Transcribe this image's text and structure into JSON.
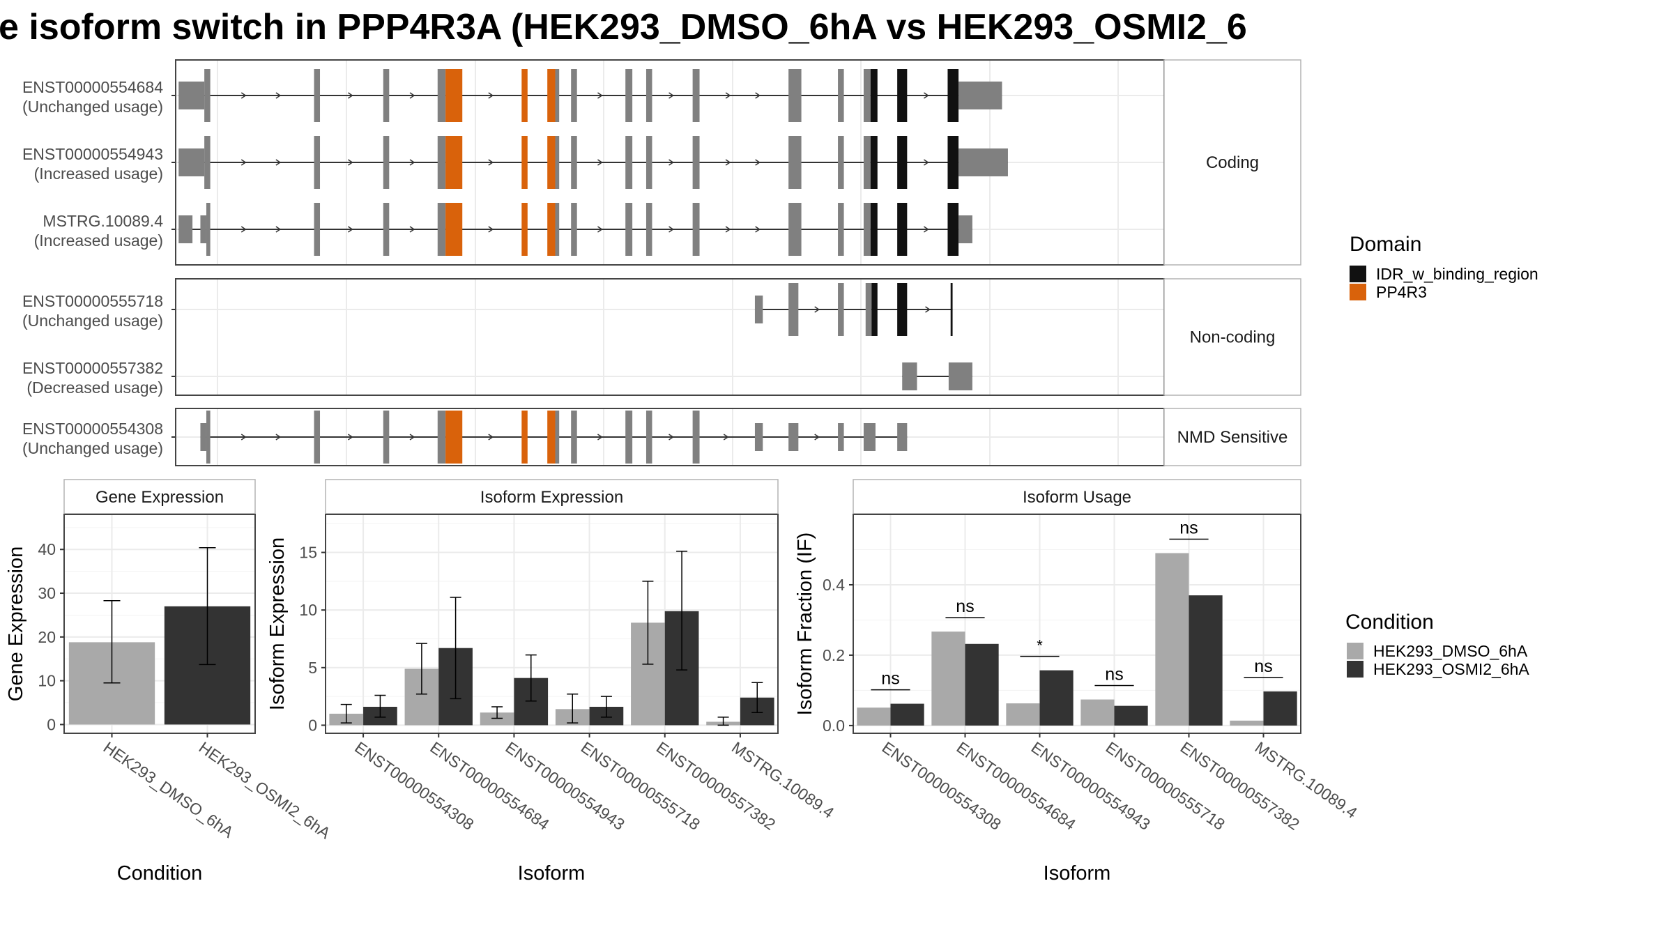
{
  "title": "e isoform switch in PPP4R3A (HEK293_DMSO_6hA vs HEK293_OSMI2_6",
  "colors": {
    "dmso": "#a9a9a9",
    "osmi2": "#333333",
    "exon": "#808080",
    "idr": "#111111",
    "pp4r3": "#d9620b",
    "intron": "#333333",
    "grid": "#ebebeb",
    "panel_border": "#444444"
  },
  "transcript_plot": {
    "groups": [
      {
        "label": "Coding",
        "transcripts": [
          {
            "id": "ENST00000554684",
            "usage": "(Unchanged usage)",
            "exons": [
              [
                0.3,
                2.9,
                "thin"
              ],
              [
                2.9,
                3.5,
                "thick"
              ],
              [
                14,
                14.6,
                "thick"
              ],
              [
                21,
                21.6,
                "thick"
              ],
              [
                26.5,
                27.3,
                "thick"
              ],
              [
                27.3,
                29,
                "pp4r3"
              ],
              [
                35,
                35.6,
                "pp4r3"
              ],
              [
                37.6,
                38.4,
                "pp4r3"
              ],
              [
                38.4,
                38.8,
                "thick"
              ],
              [
                40,
                40.6,
                "thick"
              ],
              [
                45.5,
                46.2,
                "thick"
              ],
              [
                47.6,
                48.2,
                "thick"
              ],
              [
                52.3,
                53,
                "thick"
              ],
              [
                62,
                63.3,
                "thick"
              ],
              [
                67,
                67.6,
                "thick"
              ],
              [
                69.6,
                70.3,
                "thick"
              ],
              [
                70.3,
                71,
                "idr"
              ],
              [
                73,
                74,
                "idr"
              ],
              [
                78.1,
                79.2,
                "idr"
              ],
              [
                79.2,
                83.6,
                "thin"
              ]
            ]
          },
          {
            "id": "ENST00000554943",
            "usage": "(Increased usage)",
            "exons": [
              [
                0.3,
                2.9,
                "thin"
              ],
              [
                2.9,
                3.5,
                "thick"
              ],
              [
                14,
                14.6,
                "thick"
              ],
              [
                21,
                21.6,
                "thick"
              ],
              [
                26.5,
                27.3,
                "thick"
              ],
              [
                27.3,
                29,
                "pp4r3"
              ],
              [
                35,
                35.6,
                "pp4r3"
              ],
              [
                37.6,
                38.4,
                "pp4r3"
              ],
              [
                38.4,
                38.8,
                "thick"
              ],
              [
                40,
                40.6,
                "thick"
              ],
              [
                45.5,
                46.2,
                "thick"
              ],
              [
                47.6,
                48.2,
                "thick"
              ],
              [
                52.3,
                53,
                "thick"
              ],
              [
                62,
                63.3,
                "thick"
              ],
              [
                67,
                67.6,
                "thick"
              ],
              [
                69.6,
                70.3,
                "thick"
              ],
              [
                70.3,
                71,
                "idr"
              ],
              [
                73,
                74,
                "idr"
              ],
              [
                78.1,
                79.2,
                "idr"
              ],
              [
                79.2,
                84.2,
                "thin"
              ]
            ]
          },
          {
            "id": "MSTRG.10089.4",
            "usage": "(Increased usage)",
            "exons": [
              [
                0.3,
                1.7,
                "thin"
              ],
              [
                2.5,
                3.1,
                "thin"
              ],
              [
                3.1,
                3.5,
                "thick"
              ],
              [
                14,
                14.6,
                "thick"
              ],
              [
                21,
                21.6,
                "thick"
              ],
              [
                26.5,
                27.3,
                "thick"
              ],
              [
                27.3,
                29,
                "pp4r3"
              ],
              [
                35,
                35.6,
                "pp4r3"
              ],
              [
                37.6,
                38.4,
                "pp4r3"
              ],
              [
                38.4,
                38.8,
                "thick"
              ],
              [
                40,
                40.6,
                "thick"
              ],
              [
                45.5,
                46.2,
                "thick"
              ],
              [
                47.6,
                48.2,
                "thick"
              ],
              [
                52.3,
                53,
                "thick"
              ],
              [
                62,
                63.3,
                "thick"
              ],
              [
                67,
                67.6,
                "thick"
              ],
              [
                69.6,
                70.3,
                "thick"
              ],
              [
                70.3,
                71,
                "idr"
              ],
              [
                73,
                74,
                "idr"
              ],
              [
                78.1,
                79.2,
                "idr"
              ],
              [
                79.2,
                80.6,
                "thin"
              ]
            ]
          }
        ]
      },
      {
        "label": "Non-coding",
        "transcripts": [
          {
            "id": "ENST00000555718",
            "usage": "(Unchanged usage)",
            "exons": [
              [
                58.6,
                59.4,
                "thin"
              ],
              [
                62,
                63,
                "thick"
              ],
              [
                67,
                67.6,
                "thick"
              ],
              [
                69.8,
                70.4,
                "thick"
              ],
              [
                70.4,
                71,
                "idr"
              ],
              [
                73,
                74,
                "idr"
              ],
              [
                78.4,
                78.6,
                "idr"
              ]
            ]
          },
          {
            "id": "ENST00000557382",
            "usage": "(Decreased usage)",
            "exons": [
              [
                73.5,
                75,
                "thin"
              ],
              [
                78.2,
                80.6,
                "thin"
              ]
            ]
          }
        ]
      },
      {
        "label": "NMD Sensitive",
        "transcripts": [
          {
            "id": "ENST00000554308",
            "usage": "(Unchanged usage)",
            "exons": [
              [
                2.5,
                3.1,
                "thin"
              ],
              [
                3.1,
                3.5,
                "thick"
              ],
              [
                14,
                14.6,
                "thick"
              ],
              [
                21,
                21.6,
                "thick"
              ],
              [
                26.5,
                27.3,
                "thick"
              ],
              [
                27.3,
                29,
                "pp4r3"
              ],
              [
                35,
                35.6,
                "pp4r3"
              ],
              [
                37.6,
                38.4,
                "pp4r3"
              ],
              [
                38.4,
                38.8,
                "thick"
              ],
              [
                40,
                40.6,
                "thick"
              ],
              [
                45.5,
                46.2,
                "thick"
              ],
              [
                47.6,
                48.2,
                "thick"
              ],
              [
                52.3,
                53,
                "thick"
              ],
              [
                58.6,
                59.4,
                "thin"
              ],
              [
                62,
                63,
                "thin"
              ],
              [
                67,
                67.6,
                "thin"
              ],
              [
                69.6,
                70.8,
                "thin"
              ],
              [
                73,
                74,
                "thin"
              ]
            ]
          }
        ]
      }
    ],
    "domain_legend": {
      "title": "Domain",
      "items": [
        {
          "label": "IDR_w_binding_region",
          "color": "#111111"
        },
        {
          "label": "PP4R3",
          "color": "#d9620b"
        }
      ]
    }
  },
  "chart_data": [
    {
      "type": "bar",
      "title": "Gene Expression",
      "xlabel": "Condition",
      "ylabel": "Gene Expression",
      "categories": [
        "HEK293_DMSO_6hA",
        "HEK293_OSMI2_6hA"
      ],
      "values": [
        18.8,
        27.0
      ],
      "errors": [
        [
          9.5,
          28.3
        ],
        [
          13.7,
          40.4
        ]
      ],
      "colors": [
        "#a9a9a9",
        "#333333"
      ],
      "yticks": [
        0,
        10,
        20,
        30,
        40
      ],
      "ylim": [
        -2,
        48
      ]
    },
    {
      "type": "bar",
      "title": "Isoform Expression",
      "xlabel": "Isoform",
      "ylabel": "Isoform Expression",
      "categories": [
        "ENST00000554308",
        "ENST00000554684",
        "ENST00000554943",
        "ENST00000555718",
        "ENST00000557382",
        "MSTRG.10089.4"
      ],
      "series": [
        {
          "name": "HEK293_DMSO_6hA",
          "values": [
            1.0,
            4.9,
            1.1,
            1.4,
            8.9,
            0.3
          ],
          "errors": [
            [
              0.2,
              1.8
            ],
            [
              2.7,
              7.1
            ],
            [
              0.6,
              1.6
            ],
            [
              0.2,
              2.7
            ],
            [
              5.3,
              12.5
            ],
            [
              0.0,
              0.7
            ]
          ]
        },
        {
          "name": "HEK293_OSMI2_6hA",
          "values": [
            1.6,
            6.7,
            4.1,
            1.6,
            9.9,
            2.4
          ],
          "errors": [
            [
              0.7,
              2.6
            ],
            [
              2.3,
              11.1
            ],
            [
              2.1,
              6.1
            ],
            [
              0.7,
              2.5
            ],
            [
              4.8,
              15.1
            ],
            [
              1.1,
              3.7
            ]
          ]
        }
      ],
      "yticks": [
        0,
        5,
        10,
        15
      ],
      "ylim": [
        -0.7,
        18.3
      ]
    },
    {
      "type": "bar",
      "title": "Isoform Usage",
      "xlabel": "Isoform",
      "ylabel": "Isoform Fraction (IF)",
      "categories": [
        "ENST00000554308",
        "ENST00000554684",
        "ENST00000554943",
        "ENST00000555718",
        "ENST00000557382",
        "MSTRG.10089.4"
      ],
      "series": [
        {
          "name": "HEK293_DMSO_6hA",
          "values": [
            0.051,
            0.267,
            0.063,
            0.074,
            0.49,
            0.014
          ]
        },
        {
          "name": "HEK293_OSMI2_6hA",
          "values": [
            0.062,
            0.232,
            0.157,
            0.056,
            0.37,
            0.097
          ]
        }
      ],
      "significance": [
        "ns",
        "ns",
        "*",
        "ns",
        "ns",
        "ns"
      ],
      "yticks": [
        0.0,
        0.2,
        0.4
      ],
      "ylim": [
        -0.022,
        0.6
      ]
    }
  ],
  "condition_legend": {
    "title": "Condition",
    "items": [
      {
        "label": "HEK293_DMSO_6hA",
        "color": "#a9a9a9"
      },
      {
        "label": "HEK293_OSMI2_6hA",
        "color": "#333333"
      }
    ]
  }
}
